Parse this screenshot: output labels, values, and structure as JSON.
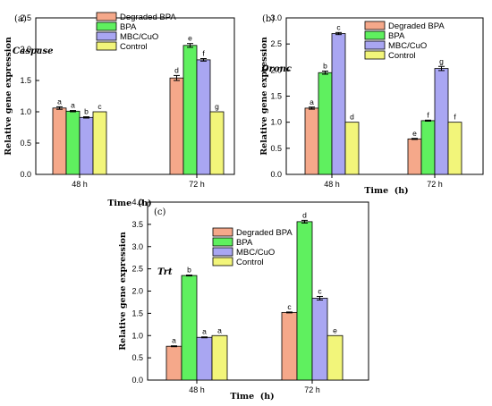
{
  "colors": {
    "Degraded BPA": "#f5a88a",
    "BPA": "#5ff05f",
    "MBC/CuO": "#a9a6f2",
    "Control": "#f2f57a"
  },
  "chart_data": [
    {
      "type": "bar",
      "panel_label": "(a)",
      "gene": "Caspase",
      "xlabel": "Time  (h)",
      "ylabel": "Relative gene expression",
      "categories": [
        "48 h",
        "72 h"
      ],
      "ylim": [
        0,
        2.5
      ],
      "yticks": [
        "0.0",
        "0.5",
        "1.0",
        "1.5",
        "2.0",
        "2.5"
      ],
      "legend_position": "top-left",
      "series": [
        {
          "name": "Degraded BPA",
          "values": [
            1.06,
            1.54
          ],
          "errors": [
            0.02,
            0.04
          ],
          "labels": [
            "a",
            "d"
          ]
        },
        {
          "name": "BPA",
          "values": [
            1.01,
            2.06
          ],
          "errors": [
            0.01,
            0.03
          ],
          "labels": [
            "a",
            "e"
          ]
        },
        {
          "name": "MBC/CuO",
          "values": [
            0.91,
            1.83
          ],
          "errors": [
            0.01,
            0.02
          ],
          "labels": [
            "b",
            "f"
          ]
        },
        {
          "name": "Control",
          "values": [
            1.0,
            1.0
          ],
          "errors": [
            0,
            0
          ],
          "labels": [
            "c",
            "g"
          ]
        }
      ]
    },
    {
      "type": "bar",
      "panel_label": "(b)",
      "gene": "Dronc",
      "xlabel": "Time  (h)",
      "ylabel": "Relative gene expression",
      "categories": [
        "48 h",
        "72 h"
      ],
      "ylim": [
        0,
        3.0
      ],
      "yticks": [
        "0.0",
        "0.5",
        "1.0",
        "1.5",
        "2.0",
        "2.5",
        "3.0"
      ],
      "legend_position": "top-right",
      "series": [
        {
          "name": "Degraded BPA",
          "values": [
            1.27,
            0.68
          ],
          "errors": [
            0.02,
            0.01
          ],
          "labels": [
            "a",
            "e"
          ]
        },
        {
          "name": "BPA",
          "values": [
            1.95,
            1.03
          ],
          "errors": [
            0.03,
            0.01
          ],
          "labels": [
            "b",
            "f"
          ]
        },
        {
          "name": "MBC/CuO",
          "values": [
            2.7,
            2.03
          ],
          "errors": [
            0.02,
            0.04
          ],
          "labels": [
            "c",
            "g"
          ]
        },
        {
          "name": "Control",
          "values": [
            1.0,
            1.0
          ],
          "errors": [
            0,
            0
          ],
          "labels": [
            "d",
            "f"
          ]
        }
      ]
    },
    {
      "type": "bar",
      "panel_label": "(c)",
      "gene": "Trt",
      "xlabel": "Time  (h)",
      "ylabel": "Relative gene expression",
      "categories": [
        "48 h",
        "72 h"
      ],
      "ylim": [
        0,
        4.0
      ],
      "yticks": [
        "0.0",
        "0.5",
        "1.0",
        "1.5",
        "2.0",
        "2.5",
        "3.0",
        "3.5",
        "4.0"
      ],
      "legend_position": "top-left",
      "series": [
        {
          "name": "Degraded BPA",
          "values": [
            0.76,
            1.52
          ],
          "errors": [
            0.01,
            0.01
          ],
          "labels": [
            "a",
            "c"
          ]
        },
        {
          "name": "BPA",
          "values": [
            2.35,
            3.56
          ],
          "errors": [
            0.01,
            0.03
          ],
          "labels": [
            "b",
            "d"
          ]
        },
        {
          "name": "MBC/CuO",
          "values": [
            0.96,
            1.84
          ],
          "errors": [
            0.01,
            0.04
          ],
          "labels": [
            "a",
            "c"
          ]
        },
        {
          "name": "Control",
          "values": [
            1.0,
            1.0
          ],
          "errors": [
            0,
            0
          ],
          "labels": [
            "a",
            "e"
          ]
        }
      ]
    }
  ]
}
